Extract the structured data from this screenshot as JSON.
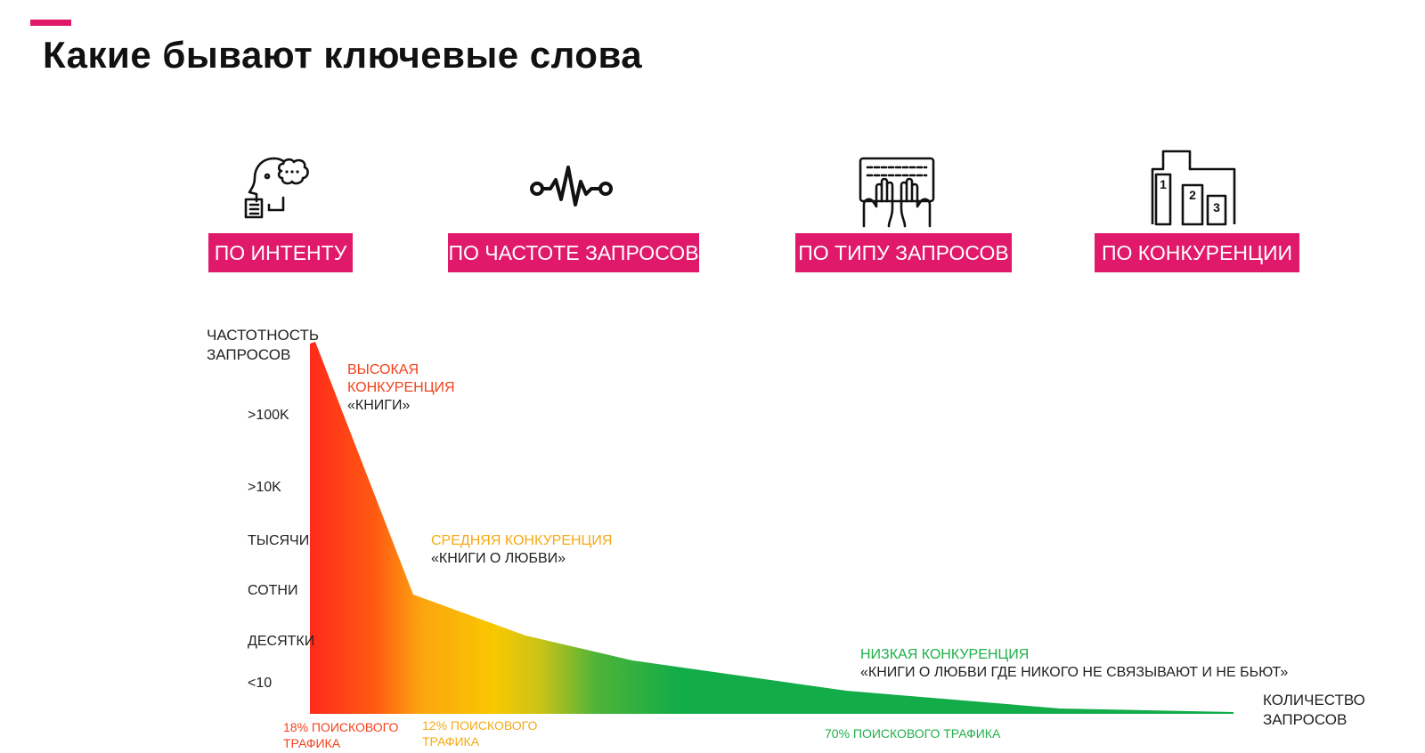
{
  "slide": {
    "title": "Какие бывают ключевые слова",
    "accent_color": "#e0196a"
  },
  "categories": [
    {
      "label": "ПО ИНТЕНТУ",
      "icon": "head-thought-icon"
    },
    {
      "label": "ПО ЧАСТОТЕ ЗАПРОСОВ",
      "icon": "pulse-wave-icon"
    },
    {
      "label": "ПО ТИПУ ЗАПРОСОВ",
      "icon": "keyboard-typing-icon"
    },
    {
      "label": "ПО КОНКУРЕНЦИИ",
      "icon": "podium-ranking-icon"
    }
  ],
  "chart": {
    "y_axis_label": [
      "ЧАСТОТНОСТЬ",
      "ЗАПРОСОВ"
    ],
    "x_axis_label": [
      "КОЛИЧЕСТВО",
      "ЗАПРОСОВ"
    ],
    "y_ticks": [
      ">100K",
      ">10K",
      "ТЫСЯЧИ",
      "СОТНИ",
      "ДЕСЯТКИ",
      "<10"
    ],
    "segments": [
      {
        "name": "ВЫСОКАЯ",
        "name2": "КОНКУРЕНЦИЯ",
        "example": "«КНИГИ»",
        "traffic": [
          "18% ПОИСКОВОГО",
          "ТРАФИКА"
        ],
        "color": "#f2421c"
      },
      {
        "name": "СРЕДНЯЯ КОНКУРЕНЦИЯ",
        "example": "«КНИГИ О ЛЮБВИ»",
        "traffic": [
          "12% ПОИСКОВОГО",
          "ТРАФИКА"
        ],
        "color": "#f5a915"
      },
      {
        "name": "НИЗКАЯ КОНКУРЕНЦИЯ",
        "example": "«КНИГИ О ЛЮБВИ ГДЕ НИКОГО НЕ СВЯЗЫВАЮТ И НЕ БЬЮТ»",
        "traffic": [
          "70% ПОИСКОВОГО ТРАФИКА"
        ],
        "color": "#1fb04a"
      }
    ]
  }
}
